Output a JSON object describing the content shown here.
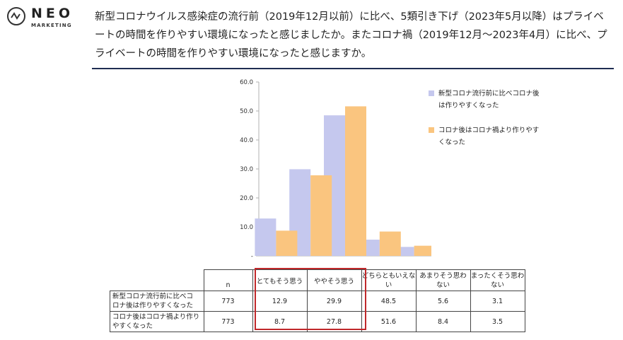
{
  "brand": {
    "name": "NEO",
    "sub": "MARKETING"
  },
  "question": "新型コロナウイルス感染症の流行前（2019年12月以前）に比べ、5類引き下げ（2023年5月以降）はプライベートの時間を作りやすい環境になったと感じましたか。またコロナ禍（2019年12月〜2023年4月）に比べ、プライベートの時間を作りやすい環境になったと感じますか。",
  "colors": {
    "series1": "#c5c8ee",
    "series2": "#fac57f",
    "rule": "#1f2d52",
    "highlight": "#c0282b"
  },
  "chart_data": {
    "type": "bar",
    "categories": [
      "とてもそう思う",
      "ややそう思う",
      "どちらともいえない",
      "あまりそう思わない",
      "まったくそう思わない"
    ],
    "series": [
      {
        "name": "新型コロナ流行前に比べコロナ後は作りやすくなった",
        "values": [
          12.9,
          29.9,
          48.5,
          5.6,
          3.1
        ]
      },
      {
        "name": "コロナ後はコロナ禍より作りやすくなった",
        "values": [
          8.7,
          27.8,
          51.6,
          8.4,
          3.5
        ]
      }
    ],
    "yticks": [
      "-",
      "10.0",
      "20.0",
      "30.0",
      "40.0",
      "50.0",
      "60.0"
    ],
    "ylim": [
      0,
      60
    ],
    "legend": "right"
  },
  "table": {
    "n_header": "n",
    "headers": [
      "とてもそう思う",
      "ややそう思う",
      "どちらともいえな\nい",
      "あまりそう思わ\nない",
      "まったくそう思わ\nない"
    ],
    "rows": [
      {
        "label": "新型コロナ流行前に比べコ\nロナ後は作りやすくなった",
        "n": "773",
        "values": [
          "12.9",
          "29.9",
          "48.5",
          "5.6",
          "3.1"
        ]
      },
      {
        "label": "コロナ後はコロナ禍より作り\nやすくなった",
        "n": "773",
        "values": [
          "8.7",
          "27.8",
          "51.6",
          "8.4",
          "3.5"
        ]
      }
    ]
  }
}
